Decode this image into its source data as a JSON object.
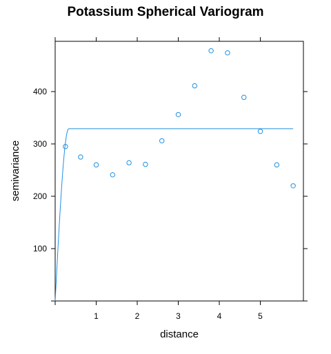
{
  "chart_data": {
    "type": "scatter",
    "title": "Potassium Spherical Variogram",
    "xlabel": "distance",
    "ylabel": "semivariance",
    "xlim": [
      0,
      6.05
    ],
    "ylim": [
      0,
      496
    ],
    "x_ticks": [
      1,
      2,
      3,
      4,
      5
    ],
    "y_ticks": [
      100,
      200,
      300,
      400
    ],
    "grid": false,
    "points": [
      {
        "x": 0.25,
        "y": 295
      },
      {
        "x": 0.62,
        "y": 275
      },
      {
        "x": 1.0,
        "y": 260
      },
      {
        "x": 1.4,
        "y": 241
      },
      {
        "x": 1.8,
        "y": 264
      },
      {
        "x": 2.2,
        "y": 261
      },
      {
        "x": 2.6,
        "y": 306
      },
      {
        "x": 3.0,
        "y": 356
      },
      {
        "x": 3.4,
        "y": 411
      },
      {
        "x": 3.8,
        "y": 478
      },
      {
        "x": 4.2,
        "y": 474
      },
      {
        "x": 4.6,
        "y": 389
      },
      {
        "x": 5.0,
        "y": 324
      },
      {
        "x": 5.4,
        "y": 260
      },
      {
        "x": 5.8,
        "y": 220
      }
    ],
    "model": {
      "type": "spherical",
      "nugget": 0,
      "sill": 329,
      "range": 0.33,
      "x_max": 5.8
    },
    "colors": {
      "series": "#1f8fe0"
    }
  }
}
